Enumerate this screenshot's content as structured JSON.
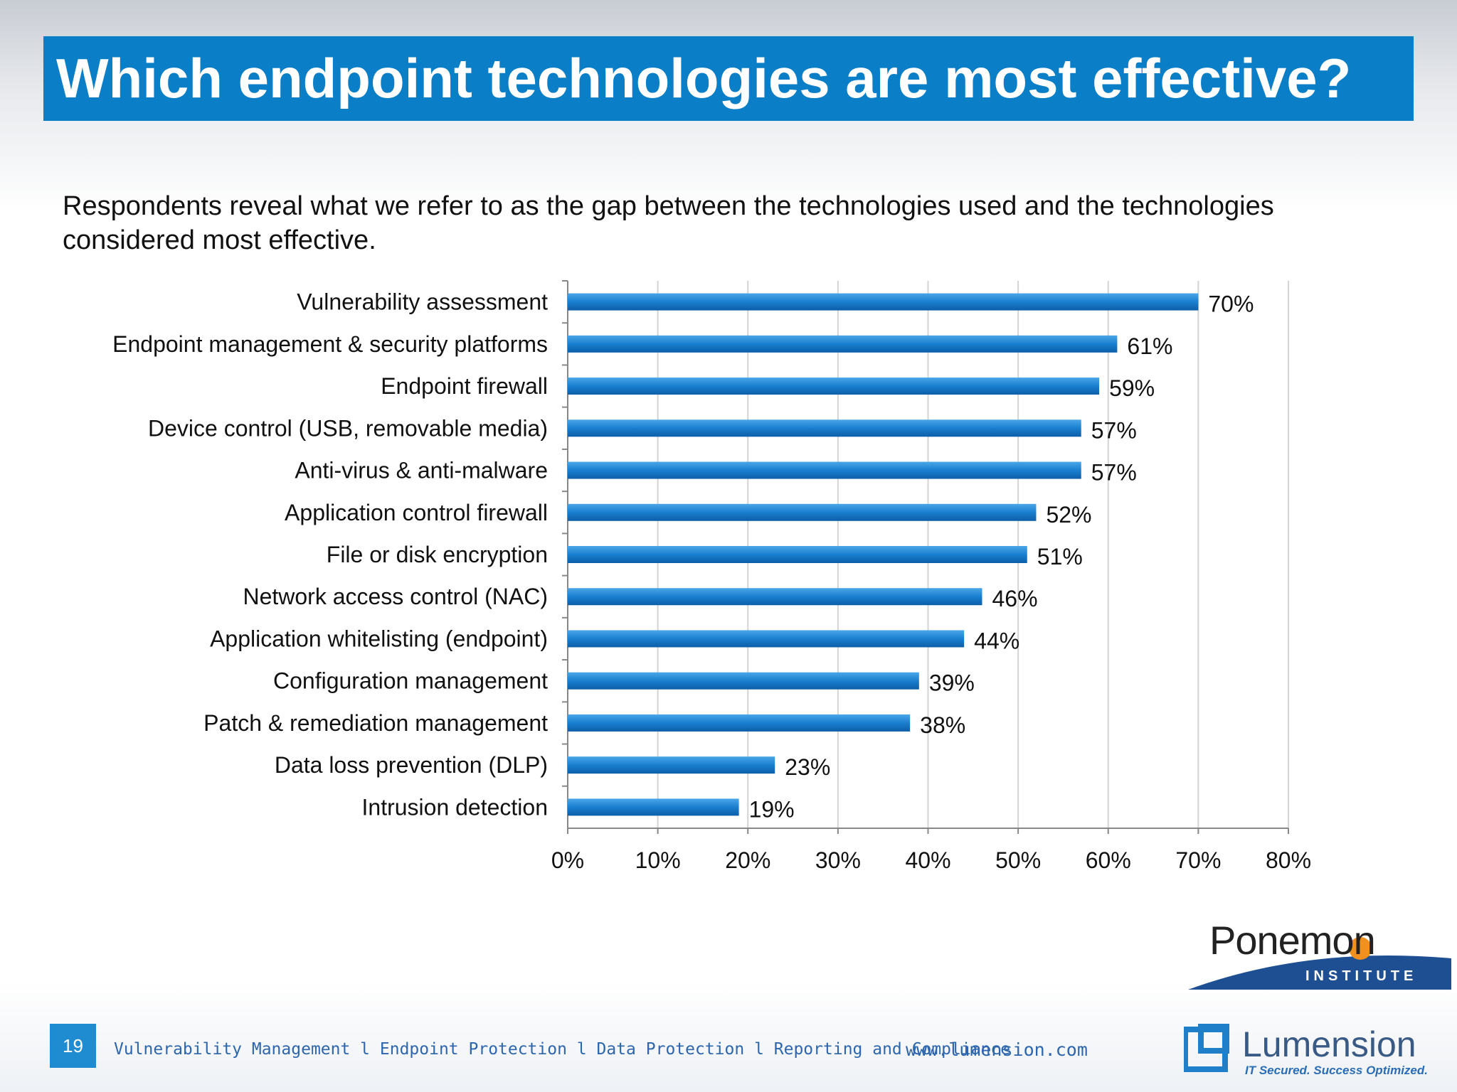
{
  "slide": {
    "title": "Which endpoint technologies are most effective?",
    "subtitle": "Respondents reveal what we refer to as the gap between the technologies used and the technologies considered most effective.",
    "page_number": "19"
  },
  "footer": {
    "nav_text": "Vulnerability Management l Endpoint Protection l Data Protection l Reporting and Compliance",
    "url": "www.lumension.com"
  },
  "logos": {
    "ponemon_name": "Ponemon",
    "ponemon_sub": "INSTITUTE",
    "lumension_name": "Lumension",
    "lumension_tagline": "IT Secured. Success Optimized."
  },
  "chart_data": {
    "type": "bar",
    "orientation": "horizontal",
    "categories": [
      "Vulnerability assessment",
      "Endpoint management & security platforms",
      "Endpoint firewall",
      "Device control (USB, removable media)",
      "Anti-virus & anti-malware",
      "Application control firewall",
      "File or disk encryption",
      "Network access control (NAC)",
      "Application whitelisting (endpoint)",
      "Configuration management",
      "Patch & remediation management",
      "Data loss prevention (DLP)",
      "Intrusion detection"
    ],
    "values": [
      70,
      61,
      59,
      57,
      57,
      52,
      51,
      46,
      44,
      39,
      38,
      23,
      19
    ],
    "value_labels": [
      "70%",
      "61%",
      "59%",
      "57%",
      "57%",
      "52%",
      "51%",
      "46%",
      "44%",
      "39%",
      "38%",
      "23%",
      "19%"
    ],
    "xlim": [
      0,
      80
    ],
    "xticks": [
      "0%",
      "10%",
      "20%",
      "30%",
      "40%",
      "50%",
      "60%",
      "70%",
      "80%"
    ],
    "grid": true,
    "bar_color": "#1a7fcf"
  }
}
